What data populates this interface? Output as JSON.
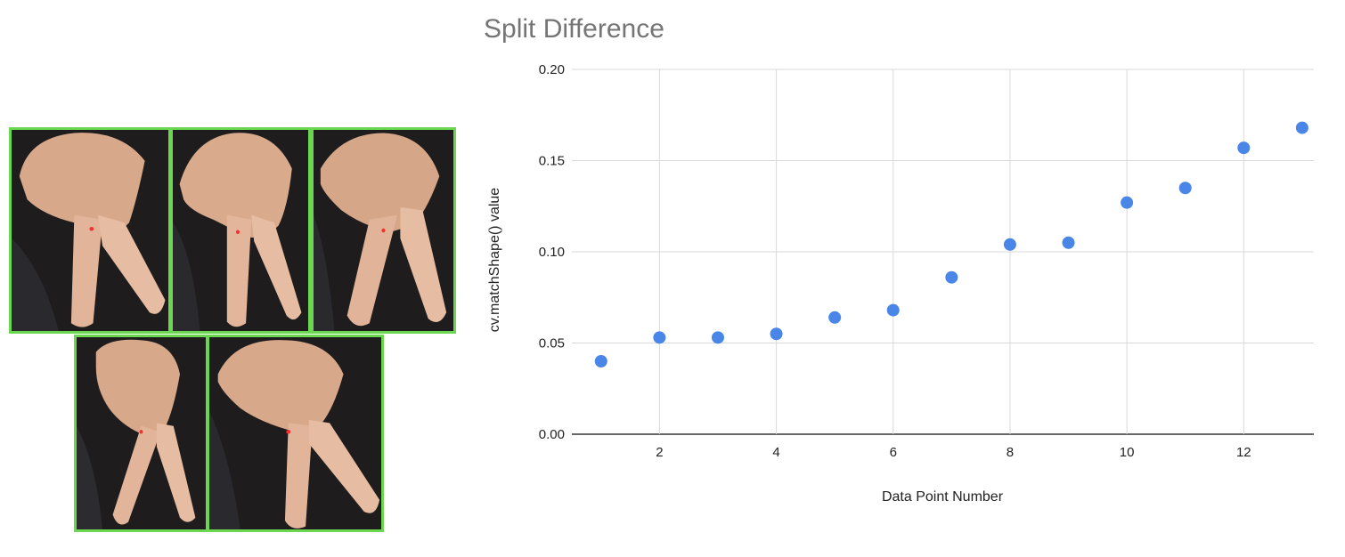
{
  "images": {
    "count": 5,
    "items": [
      {
        "name": "hand-photo-1"
      },
      {
        "name": "hand-photo-2"
      },
      {
        "name": "hand-photo-3"
      },
      {
        "name": "hand-photo-4"
      },
      {
        "name": "hand-photo-5"
      }
    ],
    "border_color": "#6bd64f",
    "marker_color": "#ff2a2a"
  },
  "chart_data": {
    "type": "scatter",
    "title": "Split Difference",
    "xlabel": "Data Point Number",
    "ylabel": "cv.matchShape() value",
    "xlim": [
      0.5,
      13.2
    ],
    "ylim": [
      0,
      0.2
    ],
    "x_ticks": [
      2,
      4,
      6,
      8,
      10,
      12
    ],
    "y_ticks": [
      "0.00",
      "0.05",
      "0.10",
      "0.15",
      "0.20"
    ],
    "grid": true,
    "legend": "none",
    "point_color": "#4a86e8",
    "x": [
      1,
      2,
      3,
      4,
      5,
      6,
      7,
      8,
      9,
      10,
      11,
      12,
      13
    ],
    "y": [
      0.04,
      0.053,
      0.053,
      0.055,
      0.064,
      0.068,
      0.086,
      0.104,
      0.105,
      0.127,
      0.135,
      0.157,
      0.168
    ]
  }
}
